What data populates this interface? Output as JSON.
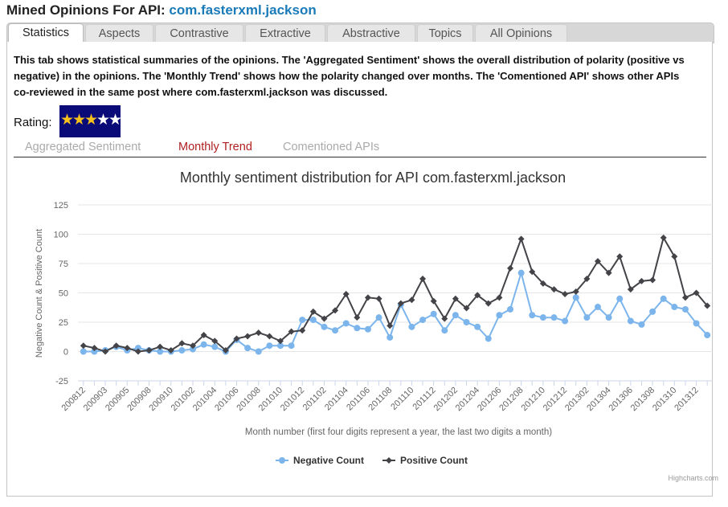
{
  "header": {
    "title_prefix": "Mined Opinions For API: ",
    "api_name": "com.fasterxml.jackson"
  },
  "tabs": [
    {
      "label": "Statistics",
      "active": true
    },
    {
      "label": "Aspects",
      "active": false
    },
    {
      "label": "Contrastive",
      "active": false
    },
    {
      "label": "Extractive",
      "active": false
    },
    {
      "label": "Abstractive",
      "active": false
    },
    {
      "label": "Topics",
      "active": false
    },
    {
      "label": "All Opinions",
      "active": false
    }
  ],
  "description": "This tab shows statistical summaries of the opinions. The 'Aggregated Sentiment' shows the overall distribution of polarity (positive vs negative) in the opinions. The 'Monthly Trend' shows how the polarity changed over months. The 'Comentioned API' shows other APIs co-reviewed in the same post where com.fasterxml.jackson was discussed.",
  "rating": {
    "label": "Rating:",
    "stars_filled": 3,
    "stars_total": 5,
    "filled_color": "#f7c21c",
    "empty_color": "#ffffff"
  },
  "subtabs": [
    {
      "label": "Aggregated Sentiment",
      "active": false
    },
    {
      "label": "Monthly Trend",
      "active": true
    },
    {
      "label": "Comentioned APIs",
      "active": false
    }
  ],
  "credit": "Highcharts.com",
  "chart_data": {
    "type": "line",
    "title": "Monthly sentiment distribution for API com.fasterxml.jackson",
    "xlabel": "Month number (first four digits represent a year, the last two digits a month)",
    "ylabel": "Negative Count & Positive Count",
    "ylim": [
      -25,
      125
    ],
    "yticks": [
      -25,
      0,
      25,
      50,
      75,
      100,
      125
    ],
    "grid": true,
    "legend_position": "bottom-center",
    "x": [
      "200812",
      "200901",
      "200903",
      "200904",
      "200905",
      "200906",
      "200908",
      "200909",
      "200910",
      "200912",
      "201002",
      "201003",
      "201004",
      "201005",
      "201006",
      "201007",
      "201008",
      "201009",
      "201010",
      "201011",
      "201012",
      "201101",
      "201102",
      "201103",
      "201104",
      "201105",
      "201106",
      "201107",
      "201108",
      "201109",
      "201110",
      "201111",
      "201112",
      "201201",
      "201202",
      "201203",
      "201204",
      "201205",
      "201206",
      "201207",
      "201208",
      "201209",
      "201210",
      "201211",
      "201212",
      "201301",
      "201302",
      "201303",
      "201304",
      "201305",
      "201306",
      "201307",
      "201308",
      "201309",
      "201310",
      "201311",
      "201312",
      "201401"
    ],
    "xtick_labels": [
      "200812",
      "200903",
      "200905",
      "200908",
      "200910",
      "201002",
      "201004",
      "201006",
      "201008",
      "201010",
      "201012",
      "201102",
      "201104",
      "201106",
      "201108",
      "201110",
      "201112",
      "201202",
      "201204",
      "201206",
      "201208",
      "201210",
      "201212",
      "201302",
      "201304",
      "201306",
      "201308",
      "201310",
      "201312"
    ],
    "series": [
      {
        "name": "Negative Count",
        "color": "#7cb5ec",
        "marker": "circle",
        "values": [
          0,
          0,
          1,
          4,
          1,
          3,
          1,
          0,
          0,
          1,
          2,
          6,
          4,
          0,
          10,
          3,
          0,
          5,
          5,
          5,
          27,
          27,
          21,
          18,
          24,
          20,
          19,
          29,
          12,
          40,
          21,
          27,
          32,
          18,
          31,
          25,
          21,
          11,
          31,
          36,
          67,
          31,
          29,
          29,
          26,
          46,
          29,
          38,
          29,
          45,
          26,
          23,
          34,
          45,
          38,
          36,
          24,
          14
        ]
      },
      {
        "name": "Positive Count",
        "color": "#434348",
        "marker": "diamond",
        "values": [
          5,
          3,
          0,
          5,
          3,
          0,
          1,
          4,
          1,
          7,
          5,
          14,
          9,
          1,
          11,
          13,
          16,
          13,
          9,
          17,
          18,
          34,
          28,
          35,
          49,
          29,
          46,
          45,
          22,
          41,
          44,
          62,
          43,
          28,
          45,
          37,
          48,
          41,
          46,
          71,
          96,
          68,
          58,
          53,
          49,
          51,
          62,
          77,
          67,
          81,
          53,
          60,
          61,
          97,
          81,
          46,
          50,
          39
        ]
      }
    ]
  }
}
